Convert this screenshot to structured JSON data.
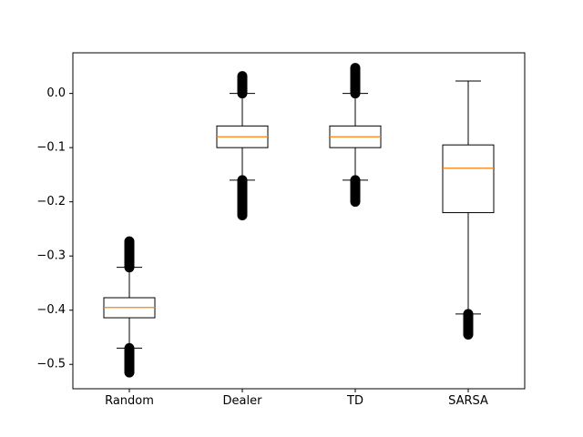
{
  "chart_data": {
    "type": "box",
    "title": "",
    "xlabel": "",
    "ylabel": "",
    "ylim": [
      -0.545,
      0.075
    ],
    "yticks": [
      {
        "value": 0.0,
        "label": "0.0"
      },
      {
        "value": -0.1,
        "label": "−0.1"
      },
      {
        "value": -0.2,
        "label": "−0.2"
      },
      {
        "value": -0.3,
        "label": "−0.3"
      },
      {
        "value": -0.4,
        "label": "−0.4"
      },
      {
        "value": -0.5,
        "label": "−0.5"
      }
    ],
    "categories": [
      "Random",
      "Dealer",
      "TD",
      "SARSA"
    ],
    "boxes": [
      {
        "label": "Random",
        "whisker_low": -0.47,
        "q1": -0.414,
        "median": -0.395,
        "q3": -0.377,
        "whisker_high": -0.321,
        "outliers_low": [
          -0.47,
          -0.515
        ],
        "outliers_high": [
          -0.321,
          -0.273
        ]
      },
      {
        "label": "Dealer",
        "whisker_low": -0.16,
        "q1": -0.1,
        "median": -0.08,
        "q3": -0.06,
        "whisker_high": 0.0,
        "outliers_low": [
          -0.16,
          -0.225
        ],
        "outliers_high": [
          0.0,
          0.032
        ]
      },
      {
        "label": "TD",
        "whisker_low": -0.16,
        "q1": -0.1,
        "median": -0.08,
        "q3": -0.06,
        "whisker_high": 0.0,
        "outliers_low": [
          -0.16,
          -0.2
        ],
        "outliers_high": [
          0.0,
          0.047
        ]
      },
      {
        "label": "SARSA",
        "whisker_low": -0.407,
        "q1": -0.22,
        "median": -0.138,
        "q3": -0.095,
        "whisker_high": 0.023,
        "outliers_low": [
          -0.407,
          -0.445
        ],
        "outliers_high": []
      }
    ],
    "colors": {
      "box": "#000000",
      "median": "#ff7f0e",
      "outlier": "#000000",
      "axes": "#000000"
    },
    "grid": false
  }
}
